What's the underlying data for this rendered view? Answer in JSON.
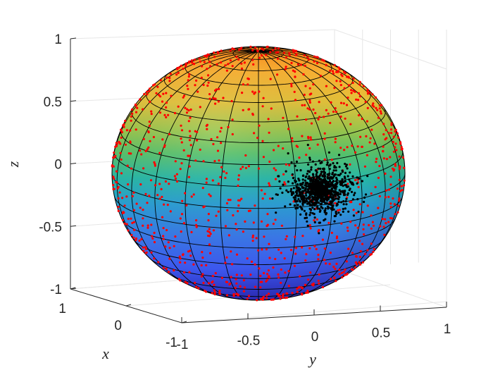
{
  "chart_data": {
    "type": "scatter",
    "subtype": "3d-sphere-with-point-clouds",
    "title": "",
    "xlabel": "x",
    "ylabel": "y",
    "zlabel": "z",
    "xlim": [
      -1,
      1
    ],
    "ylim": [
      -1,
      1
    ],
    "zlim": [
      -1,
      1
    ],
    "grid": true,
    "surface": {
      "shape": "unit sphere",
      "colormap": "turbo (blue at z=-1, red/orange at z=1)",
      "mesh": "black latitude/longitude lines"
    },
    "x_ticks": [
      {
        "label": "-1",
        "value": -1
      },
      {
        "label": "0",
        "value": 0
      },
      {
        "label": "1",
        "value": 1
      }
    ],
    "y_ticks": [
      {
        "label": "-1",
        "value": -1
      },
      {
        "label": "-0.5",
        "value": -0.5
      },
      {
        "label": "0",
        "value": 0
      },
      {
        "label": "0.5",
        "value": 0.5
      },
      {
        "label": "1",
        "value": 1
      }
    ],
    "z_ticks": [
      {
        "label": "-1",
        "value": -1
      },
      {
        "label": "-0.5",
        "value": -0.5
      },
      {
        "label": "0",
        "value": 0
      },
      {
        "label": "0.5",
        "value": 0.5
      },
      {
        "label": "1",
        "value": 1
      }
    ],
    "series": [
      {
        "distribution": "uniform on sphere surface",
        "color": "#ff0000",
        "point_count": 2000
      },
      {
        "distribution": "concentrated cluster on sphere surface",
        "center": {
          "y": 0.0,
          "z": -0.2
        },
        "color": "#000000",
        "point_count": 2000
      }
    ]
  },
  "colors": {
    "axis": "#262626",
    "grid": "#e6e6e6",
    "mesh": "#000000"
  }
}
